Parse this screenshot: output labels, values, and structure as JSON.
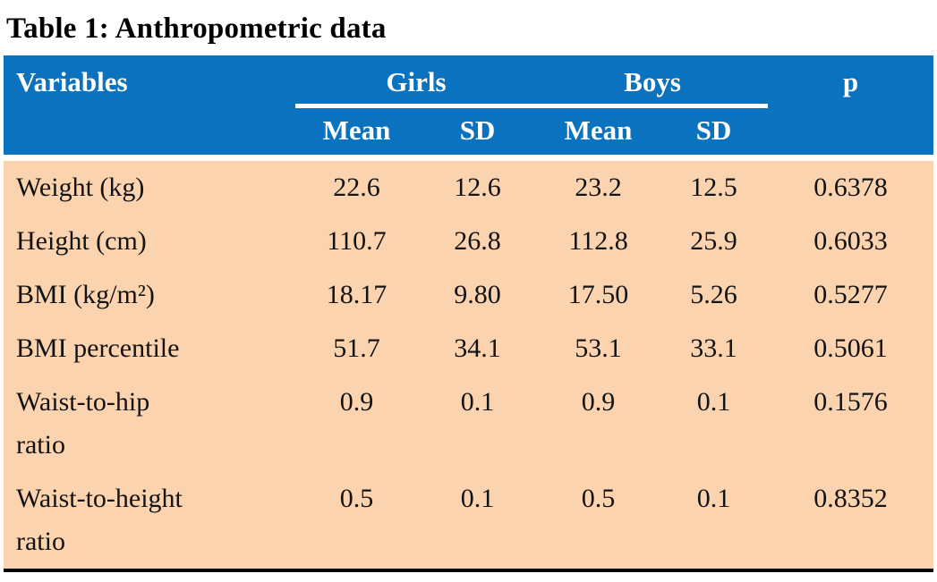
{
  "title": "Table 1: Anthropometric data",
  "colors": {
    "header_bg": "#0a72be",
    "header_text": "#ffffff",
    "body_bg": "#fbd3ae",
    "body_text": "#131313",
    "bottom_rule": "#000000"
  },
  "table": {
    "headers": {
      "variables": "Variables",
      "girls": "Girls",
      "boys": "Boys",
      "p": "p",
      "mean": "Mean",
      "sd": "SD"
    },
    "rows": [
      {
        "variable": "Weight (kg)",
        "girls_mean": "22.6",
        "girls_sd": "12.6",
        "boys_mean": "23.2",
        "boys_sd": "12.5",
        "p": "0.6378"
      },
      {
        "variable": "Height (cm)",
        "girls_mean": "110.7",
        "girls_sd": "26.8",
        "boys_mean": "112.8",
        "boys_sd": "25.9",
        "p": "0.6033"
      },
      {
        "variable": "BMI (kg/m²)",
        "girls_mean": "18.17",
        "girls_sd": "9.80",
        "boys_mean": "17.50",
        "boys_sd": "5.26",
        "p": "0.5277"
      },
      {
        "variable": "BMI percentile",
        "girls_mean": "51.7",
        "girls_sd": "34.1",
        "boys_mean": "53.1",
        "boys_sd": "33.1",
        "p": "0.5061"
      },
      {
        "variable": "Waist-to-hip\nratio",
        "girls_mean": "0.9",
        "girls_sd": "0.1",
        "boys_mean": "0.9",
        "boys_sd": "0.1",
        "p": "0.1576"
      },
      {
        "variable": "Waist-to-height\nratio",
        "girls_mean": "0.5",
        "girls_sd": "0.1",
        "boys_mean": "0.5",
        "boys_sd": "0.1",
        "p": "0.8352"
      }
    ]
  }
}
